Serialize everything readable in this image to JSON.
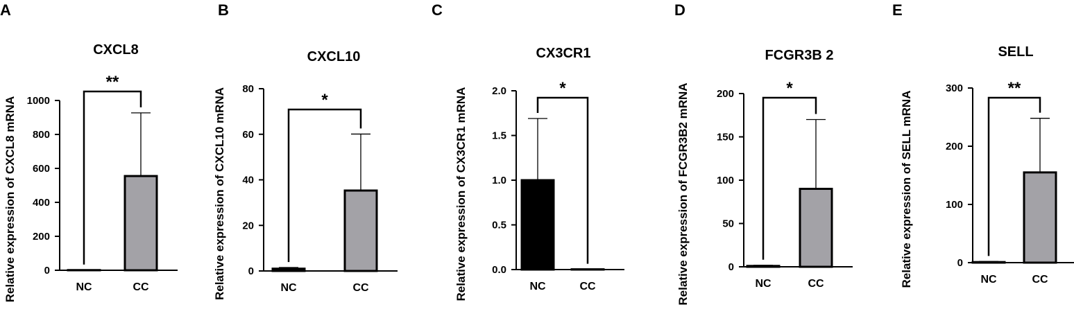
{
  "chart_data": [
    {
      "type": "bar",
      "panel": "A",
      "title": "CXCL8",
      "ylabel": "Relative  expression of CXCL8 mRNA",
      "categories": [
        "NC",
        "CC"
      ],
      "values": [
        1,
        555
      ],
      "error": [
        0,
        372
      ],
      "ylim": [
        0,
        1000
      ],
      "yticks": [
        "0",
        "200",
        "400",
        "600",
        "800",
        "1000"
      ],
      "significance": "**",
      "colors": [
        "#000000",
        "#a3a2a7"
      ]
    },
    {
      "type": "bar",
      "panel": "B",
      "title": "CXCL10",
      "ylabel": "Relative  expression of CXCL10 mRNA",
      "categories": [
        "NC",
        "CC"
      ],
      "values": [
        1,
        35.3
      ],
      "error": [
        0.5,
        24.8
      ],
      "ylim": [
        0,
        80
      ],
      "yticks": [
        "0",
        "20",
        "40",
        "60",
        "80"
      ],
      "significance": "*",
      "colors": [
        "#000000",
        "#a3a2a7"
      ]
    },
    {
      "type": "bar",
      "panel": "C",
      "title": "CX3CR1",
      "ylabel": "Relative  expression of CX3CR1 mRNA",
      "categories": [
        "NC",
        "CC"
      ],
      "values": [
        1.0,
        0.003
      ],
      "error": [
        0.69,
        0
      ],
      "ylim": [
        0,
        2.0
      ],
      "yticks": [
        "0.0",
        "0.5",
        "1.0",
        "1.5",
        "2.0"
      ],
      "significance": "*",
      "colors": [
        "#000000",
        "#a3a2a7"
      ]
    },
    {
      "type": "bar",
      "panel": "D",
      "title": "FCGR3B 2",
      "ylabel": "Relative  expression of FCGR3B2 mRNA",
      "categories": [
        "NC",
        "CC"
      ],
      "values": [
        1,
        90
      ],
      "error": [
        0.8,
        80
      ],
      "ylim": [
        0,
        200
      ],
      "yticks": [
        "0",
        "50",
        "100",
        "150",
        "200"
      ],
      "significance": "*",
      "colors": [
        "#000000",
        "#a3a2a7"
      ]
    },
    {
      "type": "bar",
      "panel": "E",
      "title": "SELL",
      "ylabel": "Relative  expression of SELL mRNA",
      "categories": [
        "NC",
        "CC"
      ],
      "values": [
        1,
        155
      ],
      "error": [
        1,
        93
      ],
      "ylim": [
        0,
        300
      ],
      "yticks": [
        "0",
        "100",
        "200",
        "300"
      ],
      "significance": "**",
      "colors": [
        "#000000",
        "#a3a2a7"
      ]
    }
  ]
}
